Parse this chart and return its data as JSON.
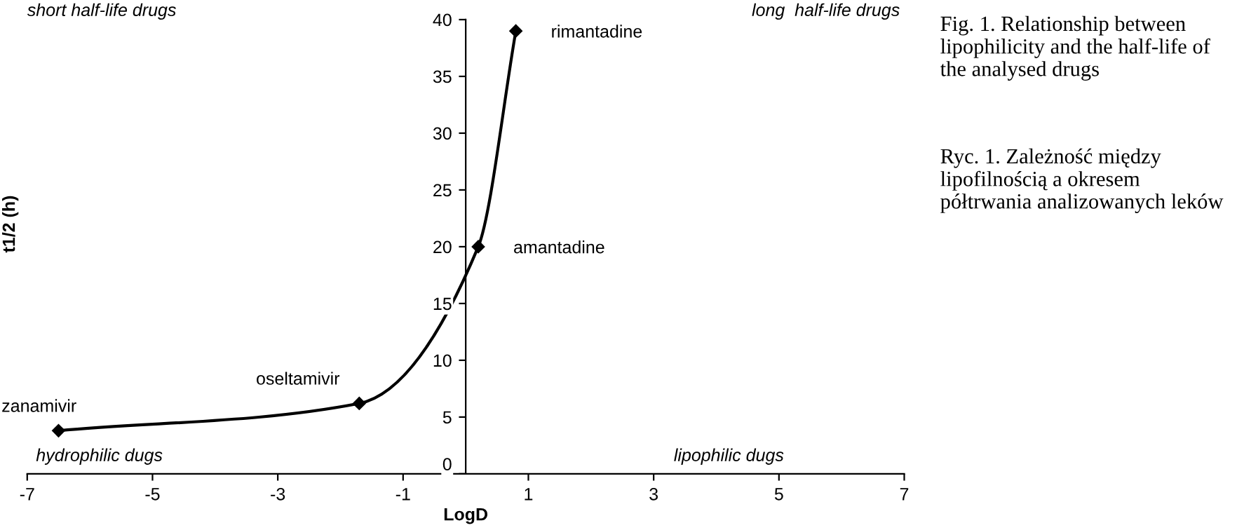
{
  "chart_data": {
    "type": "line",
    "xlabel": "LogD",
    "ylabel": "t1/2 (h)",
    "x": [
      -6.5,
      -1.7,
      0.2,
      0.8
    ],
    "series": [
      {
        "color": "#000000",
        "values": [
          3.8,
          6.2,
          20,
          39
        ]
      }
    ],
    "marker": "diamond",
    "line_style": "solid",
    "grid": false,
    "legend": false,
    "xlim": [
      -7,
      7
    ],
    "xticks": [
      -7,
      -5,
      -3,
      -1,
      1,
      3,
      5,
      7
    ],
    "ylim": [
      0,
      40
    ],
    "yticks": [
      0,
      5,
      10,
      15,
      20,
      25,
      30,
      35,
      40
    ],
    "annotations": [
      {
        "text": "zanamivir",
        "x": -6.5,
        "y": 3.8
      },
      {
        "text": "oseltamivir",
        "x": -1.7,
        "y": 6.2
      },
      {
        "text": "amantadine",
        "x": 0.2,
        "y": 20
      },
      {
        "text": "rimantadine",
        "x": 0.8,
        "y": 39
      },
      "short half-life drugs",
      "long  half-life drugs",
      "hydrophilic dugs",
      "lipophilic dugs",
      "Fig. 1. Relationship between lipophilicity and the half-life of the analysed drugs",
      "Ryc. 1. Zależność między lipofilnością a okresem półtrwania analizowanych leków"
    ]
  }
}
